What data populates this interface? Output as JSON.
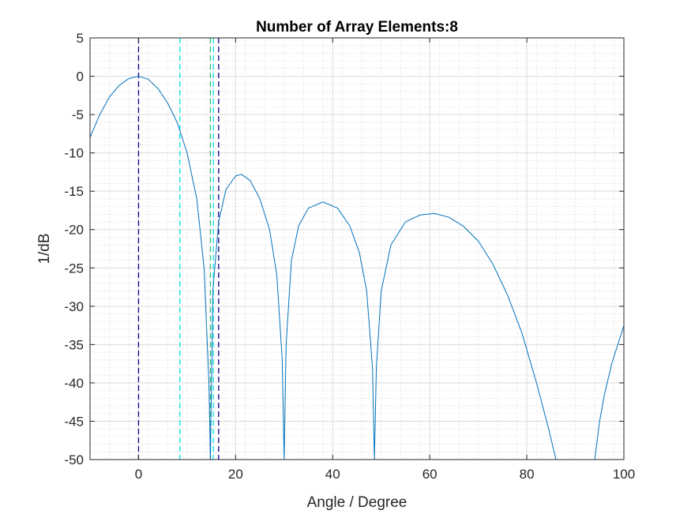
{
  "chart_data": {
    "type": "line",
    "title": "Number of Array Elements:8",
    "xlabel": "Angle / Degree",
    "ylabel": "1/dB",
    "xlim": [
      -10,
      100
    ],
    "ylim": [
      -50,
      5
    ],
    "xticks": [
      0,
      20,
      40,
      60,
      80,
      100
    ],
    "yticks": [
      5,
      0,
      -5,
      -10,
      -15,
      -20,
      -25,
      -30,
      -35,
      -40,
      -45,
      -50
    ],
    "grid": true,
    "minor_grid": true,
    "series": [
      {
        "color": "#0072BD",
        "style": "solid",
        "x": [
          -10,
          -8,
          -6,
          -4,
          -2,
          0,
          2,
          4,
          6,
          8,
          10,
          12,
          13.5,
          14.5,
          14.8,
          15.3,
          16.5,
          18,
          20,
          21.2,
          23,
          25,
          27,
          28.5,
          29.6,
          30,
          30.4,
          31.5,
          33,
          35,
          38,
          41,
          43.5,
          45.5,
          47,
          48.2,
          48.6,
          49,
          50,
          52,
          55,
          58,
          61,
          64,
          67,
          70,
          73,
          76,
          79,
          82,
          84.5,
          86,
          86.5,
          94,
          95,
          96,
          97.5,
          99,
          100
        ],
        "y": [
          -8.0,
          -5.0,
          -2.7,
          -1.2,
          -0.3,
          0.0,
          -0.4,
          -1.6,
          -3.5,
          -6.1,
          -10.0,
          -16.0,
          -25.0,
          -40.0,
          -50.0,
          -28.0,
          -19.0,
          -14.8,
          -13.0,
          -12.8,
          -13.6,
          -16.0,
          -20.0,
          -26.0,
          -37.0,
          -50.0,
          -35.0,
          -24.0,
          -19.5,
          -17.2,
          -16.4,
          -17.2,
          -19.5,
          -23.0,
          -28.0,
          -38.0,
          -50.0,
          -38.0,
          -28.0,
          -22.0,
          -19.0,
          -18.1,
          -17.9,
          -18.4,
          -19.6,
          -21.5,
          -24.5,
          -28.5,
          -33.5,
          -40.0,
          -46.0,
          -50.0,
          -50.0,
          -50.0,
          -45.0,
          -41.5,
          -37.5,
          -34.5,
          -32.5
        ]
      }
    ],
    "vertical_lines": [
      {
        "x": 0,
        "color": "#00008B",
        "style": "dashed"
      },
      {
        "x": 8.5,
        "color": "#00E5E5",
        "style": "dashed"
      },
      {
        "x": 14.8,
        "color": "#3CB371",
        "style": "dashed"
      },
      {
        "x": 15.4,
        "color": "#00E5E5",
        "style": "dashed"
      },
      {
        "x": 16.5,
        "color": "#00008B",
        "style": "dashed"
      }
    ]
  }
}
